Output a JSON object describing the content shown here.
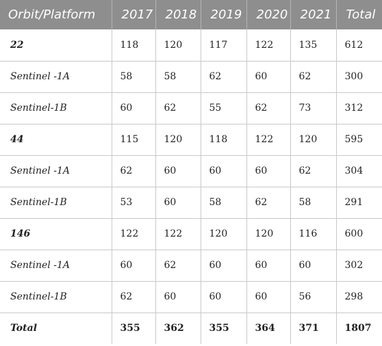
{
  "table": {
    "headers": [
      "Orbit/Platform",
      "2017",
      "2018",
      "2019",
      "2020",
      "2021",
      "Total"
    ],
    "rows": [
      {
        "kind": "group",
        "cells": [
          "22",
          "118",
          "120",
          "117",
          "122",
          "135",
          "612"
        ]
      },
      {
        "kind": "sub",
        "cells": [
          "Sentinel -1A",
          "58",
          "58",
          "62",
          "60",
          "62",
          "300"
        ]
      },
      {
        "kind": "sub",
        "cells": [
          "Sentinel-1B",
          "60",
          "62",
          "55",
          "62",
          "73",
          "312"
        ]
      },
      {
        "kind": "group",
        "cells": [
          "44",
          "115",
          "120",
          "118",
          "122",
          "120",
          "595"
        ]
      },
      {
        "kind": "sub",
        "cells": [
          "Sentinel -1A",
          "62",
          "60",
          "60",
          "60",
          "62",
          "304"
        ]
      },
      {
        "kind": "sub",
        "cells": [
          "Sentinel-1B",
          "53",
          "60",
          "58",
          "62",
          "58",
          "291"
        ]
      },
      {
        "kind": "group",
        "cells": [
          "146",
          "122",
          "122",
          "120",
          "120",
          "116",
          "600"
        ]
      },
      {
        "kind": "sub",
        "cells": [
          "Sentinel -1A",
          "60",
          "62",
          "60",
          "60",
          "60",
          "302"
        ]
      },
      {
        "kind": "sub",
        "cells": [
          "Sentinel-1B",
          "62",
          "60",
          "60",
          "60",
          "56",
          "298"
        ]
      },
      {
        "kind": "total",
        "cells": [
          "Total",
          "355",
          "362",
          "355",
          "364",
          "371",
          "1807"
        ]
      }
    ]
  },
  "colors": {
    "header_bg": "#8e8e8e",
    "header_text": "#ffffff",
    "grid": "#c8c8c8"
  }
}
